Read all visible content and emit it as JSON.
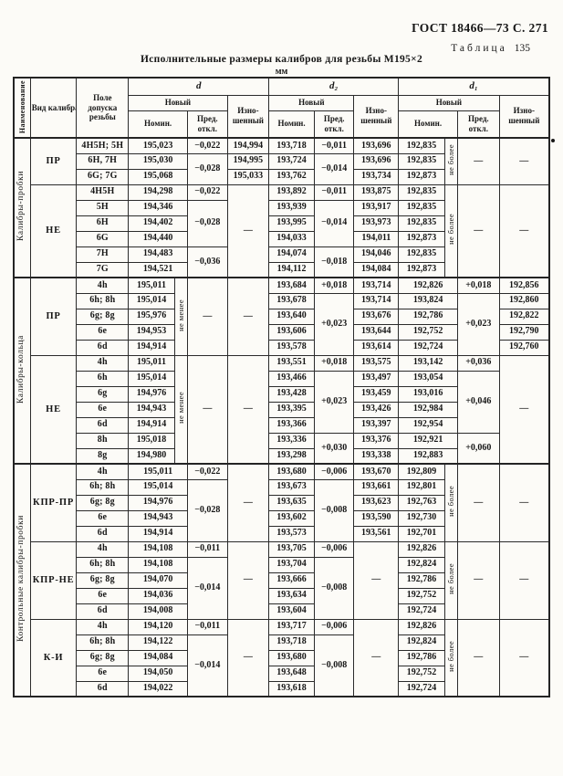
{
  "page": {
    "gost": "ГОСТ 18466—73 С. 271",
    "table_word": "Таблица",
    "table_number": "135",
    "title": "Исполнительные размеры калибров для резьбы М195×2",
    "units": "мм"
  },
  "table": {
    "header": {
      "name": "Наименование",
      "kind": "Вид калибра",
      "tol": "Поле допуска резьбы",
      "d": "d",
      "d2": "d₂",
      "d1": "d₁",
      "new": "Новый",
      "worn": "Изно­шенный",
      "nom": "Номин.",
      "dev": "Пред. откл."
    },
    "body": [
      {
        "c": [
          {
            "t": "Калибры-пробки",
            "rs": 9,
            "k": "sect"
          },
          {
            "t": "ПР",
            "rs": 3,
            "k": "kind"
          },
          {
            "t": "4H5H; 5H",
            "k": "tol"
          },
          {
            "t": "195,023",
            "cs": 2
          },
          {
            "t": "−0,022"
          },
          {
            "t": "194,994"
          },
          {
            "t": "193,718"
          },
          {
            "t": "−0,011"
          },
          {
            "t": "193,696"
          },
          {
            "t": "192,835"
          },
          {
            "t": "не более",
            "rs": 3,
            "k": "strip"
          },
          {
            "t": "—",
            "rs": 3
          },
          {
            "t": "—",
            "rs": 3
          }
        ]
      },
      {
        "c": [
          {
            "t": "6H, 7H",
            "k": "tol"
          },
          {
            "t": "195,030",
            "cs": 2
          },
          {
            "t": "−0,028",
            "rs": 2
          },
          {
            "t": "194,995"
          },
          {
            "t": "193,724"
          },
          {
            "t": "−0,014",
            "rs": 2
          },
          {
            "t": "193,696"
          },
          {
            "t": "192,835"
          }
        ]
      },
      {
        "c": [
          {
            "t": "6G; 7G",
            "k": "tol"
          },
          {
            "t": "195,068",
            "cs": 2
          },
          {
            "t": "195,033"
          },
          {
            "t": "193,762"
          },
          {
            "t": "193,734"
          },
          {
            "t": "192,873"
          }
        ]
      },
      {
        "c": [
          {
            "t": "НЕ",
            "rs": 6,
            "k": "kind"
          },
          {
            "t": "4H5H",
            "k": "tol"
          },
          {
            "t": "194,298",
            "cs": 2
          },
          {
            "t": "−0,022"
          },
          {
            "t": "—",
            "rs": 6
          },
          {
            "t": "193,892"
          },
          {
            "t": "−0,011"
          },
          {
            "t": "193,875"
          },
          {
            "t": "192,835"
          },
          {
            "t": "не более",
            "rs": 6,
            "k": "strip"
          },
          {
            "t": "—",
            "rs": 6
          },
          {
            "t": "—",
            "rs": 6
          }
        ]
      },
      {
        "c": [
          {
            "t": "5H",
            "k": "tol"
          },
          {
            "t": "194,346",
            "cs": 2
          },
          {
            "t": "−0,028",
            "rs": 3
          },
          {
            "t": "193,939"
          },
          {
            "t": "−0,014",
            "rs": 3
          },
          {
            "t": "193,917"
          },
          {
            "t": "192,835"
          }
        ]
      },
      {
        "c": [
          {
            "t": "6H",
            "k": "tol"
          },
          {
            "t": "194,402",
            "cs": 2
          },
          {
            "t": "193,995"
          },
          {
            "t": "193,973"
          },
          {
            "t": "192,835"
          }
        ]
      },
      {
        "c": [
          {
            "t": "6G",
            "k": "tol"
          },
          {
            "t": "194,440",
            "cs": 2
          },
          {
            "t": "194,033"
          },
          {
            "t": "194,011"
          },
          {
            "t": "192,873"
          }
        ]
      },
      {
        "c": [
          {
            "t": "7H",
            "k": "tol"
          },
          {
            "t": "194,483",
            "cs": 2
          },
          {
            "t": "−0,036",
            "rs": 2
          },
          {
            "t": "194,074"
          },
          {
            "t": "−0,018",
            "rs": 2
          },
          {
            "t": "194,046"
          },
          {
            "t": "192,835"
          }
        ]
      },
      {
        "c": [
          {
            "t": "7G",
            "k": "tol"
          },
          {
            "t": "194,521",
            "cs": 2
          },
          {
            "t": "194,112"
          },
          {
            "t": "194,084"
          },
          {
            "t": "192,873"
          }
        ]
      },
      {
        "cls": "sb",
        "c": [
          {
            "t": "Калибры-кольца",
            "rs": 12,
            "k": "sect"
          },
          {
            "t": "ПР",
            "rs": 5,
            "k": "kind"
          },
          {
            "t": "4h",
            "k": "tol"
          },
          {
            "t": "195,011"
          },
          {
            "t": "не менее",
            "rs": 5,
            "k": "strip"
          },
          {
            "t": "—",
            "rs": 5
          },
          {
            "t": "—",
            "rs": 5
          },
          {
            "t": "193,684"
          },
          {
            "t": "+0,018"
          },
          {
            "t": "193,714"
          },
          {
            "t": "192,826",
            "cs": 2
          },
          {
            "t": "+0,018"
          },
          {
            "t": "192,856"
          }
        ]
      },
      {
        "c": [
          {
            "t": "6h; 8h",
            "k": "tol"
          },
          {
            "t": "195,014"
          },
          {
            "t": "193,678"
          },
          {
            "t": "+0,023",
            "rs": 4
          },
          {
            "t": "193,714"
          },
          {
            "t": "193,824",
            "cs": 2
          },
          {
            "t": "+0,023",
            "rs": 4
          },
          {
            "t": "192,860"
          }
        ]
      },
      {
        "c": [
          {
            "t": "6g; 8g",
            "k": "tol"
          },
          {
            "t": "195,976"
          },
          {
            "t": "193,640"
          },
          {
            "t": "193,676"
          },
          {
            "t": "192,786",
            "cs": 2
          },
          {
            "t": "192,822"
          }
        ]
      },
      {
        "c": [
          {
            "t": "6e",
            "k": "tol"
          },
          {
            "t": "194,953"
          },
          {
            "t": "193,606"
          },
          {
            "t": "193,644"
          },
          {
            "t": "192,752",
            "cs": 2
          },
          {
            "t": "192,790"
          }
        ]
      },
      {
        "c": [
          {
            "t": "6d",
            "k": "tol"
          },
          {
            "t": "194,914"
          },
          {
            "t": "193,578"
          },
          {
            "t": "193,614"
          },
          {
            "t": "192,724",
            "cs": 2
          },
          {
            "t": "192,760"
          }
        ]
      },
      {
        "c": [
          {
            "t": "НЕ",
            "rs": 7,
            "k": "kind"
          },
          {
            "t": "4h",
            "k": "tol"
          },
          {
            "t": "195,011"
          },
          {
            "t": "не менее",
            "rs": 7,
            "k": "strip"
          },
          {
            "t": "—",
            "rs": 7
          },
          {
            "t": "—",
            "rs": 7
          },
          {
            "t": "193,551"
          },
          {
            "t": "+0,018"
          },
          {
            "t": "193,575"
          },
          {
            "t": "193,142",
            "cs": 2
          },
          {
            "t": "+0,036"
          },
          {
            "t": "—",
            "rs": 7
          }
        ]
      },
      {
        "c": [
          {
            "t": "6h",
            "k": "tol"
          },
          {
            "t": "195,014"
          },
          {
            "t": "193,466"
          },
          {
            "t": "+0,023",
            "rs": 4
          },
          {
            "t": "193,497"
          },
          {
            "t": "193,054",
            "cs": 2
          },
          {
            "t": "+0,046",
            "rs": 4
          }
        ]
      },
      {
        "c": [
          {
            "t": "6g",
            "k": "tol"
          },
          {
            "t": "194,976"
          },
          {
            "t": "193,428"
          },
          {
            "t": "193,459"
          },
          {
            "t": "193,016",
            "cs": 2
          }
        ]
      },
      {
        "c": [
          {
            "t": "6e",
            "k": "tol"
          },
          {
            "t": "194,943"
          },
          {
            "t": "193,395"
          },
          {
            "t": "193,426"
          },
          {
            "t": "192,984",
            "cs": 2
          }
        ]
      },
      {
        "c": [
          {
            "t": "6d",
            "k": "tol"
          },
          {
            "t": "194,914"
          },
          {
            "t": "193,366"
          },
          {
            "t": "193,397"
          },
          {
            "t": "192,954",
            "cs": 2
          }
        ]
      },
      {
        "c": [
          {
            "t": "8h",
            "k": "tol"
          },
          {
            "t": "195,018"
          },
          {
            "t": "193,336"
          },
          {
            "t": "+0,030",
            "rs": 2
          },
          {
            "t": "193,376"
          },
          {
            "t": "192,921",
            "cs": 2
          },
          {
            "t": "+0,060",
            "rs": 2
          }
        ]
      },
      {
        "c": [
          {
            "t": "8g",
            "k": "tol"
          },
          {
            "t": "194,980"
          },
          {
            "t": "193,298"
          },
          {
            "t": "193,338"
          },
          {
            "t": "192,883",
            "cs": 2
          }
        ]
      },
      {
        "cls": "sb",
        "c": [
          {
            "t": "Контрольные калибры-пробки",
            "rs": 15,
            "k": "sect"
          },
          {
            "t": "КПР-ПР",
            "rs": 5,
            "k": "kind"
          },
          {
            "t": "4h",
            "k": "tol"
          },
          {
            "t": "195,011",
            "cs": 2
          },
          {
            "t": "−0,022"
          },
          {
            "t": "—",
            "rs": 5
          },
          {
            "t": "193,680"
          },
          {
            "t": "−0,006"
          },
          {
            "t": "193,670"
          },
          {
            "t": "192,809"
          },
          {
            "t": "не более",
            "rs": 5,
            "k": "strip"
          },
          {
            "t": "—",
            "rs": 5
          },
          {
            "t": "—",
            "rs": 5
          }
        ]
      },
      {
        "c": [
          {
            "t": "6h; 8h",
            "k": "tol"
          },
          {
            "t": "195,014",
            "cs": 2
          },
          {
            "t": "−0,028",
            "rs": 4
          },
          {
            "t": "193,673"
          },
          {
            "t": "−0,008",
            "rs": 4
          },
          {
            "t": "193,661"
          },
          {
            "t": "192,801"
          }
        ]
      },
      {
        "c": [
          {
            "t": "6g; 8g",
            "k": "tol"
          },
          {
            "t": "194,976",
            "cs": 2
          },
          {
            "t": "193,635"
          },
          {
            "t": "193,623"
          },
          {
            "t": "192,763"
          }
        ]
      },
      {
        "c": [
          {
            "t": "6e",
            "k": "tol"
          },
          {
            "t": "194,943",
            "cs": 2
          },
          {
            "t": "193,602"
          },
          {
            "t": "193,590"
          },
          {
            "t": "192,730"
          }
        ]
      },
      {
        "c": [
          {
            "t": "6d",
            "k": "tol"
          },
          {
            "t": "194,914",
            "cs": 2
          },
          {
            "t": "193,573"
          },
          {
            "t": "193,561"
          },
          {
            "t": "192,701"
          }
        ]
      },
      {
        "c": [
          {
            "t": "КПР-НЕ",
            "rs": 5,
            "k": "kind"
          },
          {
            "t": "4h",
            "k": "tol"
          },
          {
            "t": "194,108",
            "cs": 2
          },
          {
            "t": "−0,011"
          },
          {
            "t": "—",
            "rs": 5
          },
          {
            "t": "193,705"
          },
          {
            "t": "−0,006"
          },
          {
            "t": "—",
            "rs": 5
          },
          {
            "t": "192,826"
          },
          {
            "t": "не более",
            "rs": 5,
            "k": "strip"
          },
          {
            "t": "—",
            "rs": 5
          },
          {
            "t": "—",
            "rs": 5
          }
        ]
      },
      {
        "c": [
          {
            "t": "6h; 8h",
            "k": "tol"
          },
          {
            "t": "194,108",
            "cs": 2
          },
          {
            "t": "−0,014",
            "rs": 4
          },
          {
            "t": "193,704"
          },
          {
            "t": "−0,008",
            "rs": 4
          },
          {
            "t": "192,824"
          }
        ]
      },
      {
        "c": [
          {
            "t": "6g; 8g",
            "k": "tol"
          },
          {
            "t": "194,070",
            "cs": 2
          },
          {
            "t": "193,666"
          },
          {
            "t": "192,786"
          }
        ]
      },
      {
        "c": [
          {
            "t": "6e",
            "k": "tol"
          },
          {
            "t": "194,036",
            "cs": 2
          },
          {
            "t": "193,634"
          },
          {
            "t": "192,752"
          }
        ]
      },
      {
        "c": [
          {
            "t": "6d",
            "k": "tol"
          },
          {
            "t": "194,008",
            "cs": 2
          },
          {
            "t": "193,604"
          },
          {
            "t": "192,724"
          }
        ]
      },
      {
        "c": [
          {
            "t": "К-И",
            "rs": 5,
            "k": "kind"
          },
          {
            "t": "4h",
            "k": "tol"
          },
          {
            "t": "194,120",
            "cs": 2
          },
          {
            "t": "−0,011"
          },
          {
            "t": "—",
            "rs": 5
          },
          {
            "t": "193,717"
          },
          {
            "t": "−0,006"
          },
          {
            "t": "—",
            "rs": 5
          },
          {
            "t": "192,826"
          },
          {
            "t": "не более",
            "rs": 5,
            "k": "strip"
          },
          {
            "t": "—",
            "rs": 5
          },
          {
            "t": "—",
            "rs": 5
          }
        ]
      },
      {
        "c": [
          {
            "t": "6h; 8h",
            "k": "tol"
          },
          {
            "t": "194,122",
            "cs": 2
          },
          {
            "t": "−0,014",
            "rs": 4
          },
          {
            "t": "193,718"
          },
          {
            "t": "−0,008",
            "rs": 4
          },
          {
            "t": "192,824"
          }
        ]
      },
      {
        "c": [
          {
            "t": "6g; 8g",
            "k": "tol"
          },
          {
            "t": "194,084",
            "cs": 2
          },
          {
            "t": "193,680"
          },
          {
            "t": "192,786"
          }
        ]
      },
      {
        "c": [
          {
            "t": "6e",
            "k": "tol"
          },
          {
            "t": "194,050",
            "cs": 2
          },
          {
            "t": "193,648"
          },
          {
            "t": "192,752"
          }
        ]
      },
      {
        "c": [
          {
            "t": "6d",
            "k": "tol"
          },
          {
            "t": "194,022",
            "cs": 2
          },
          {
            "t": "193,618"
          },
          {
            "t": "192,724"
          }
        ]
      }
    ]
  }
}
